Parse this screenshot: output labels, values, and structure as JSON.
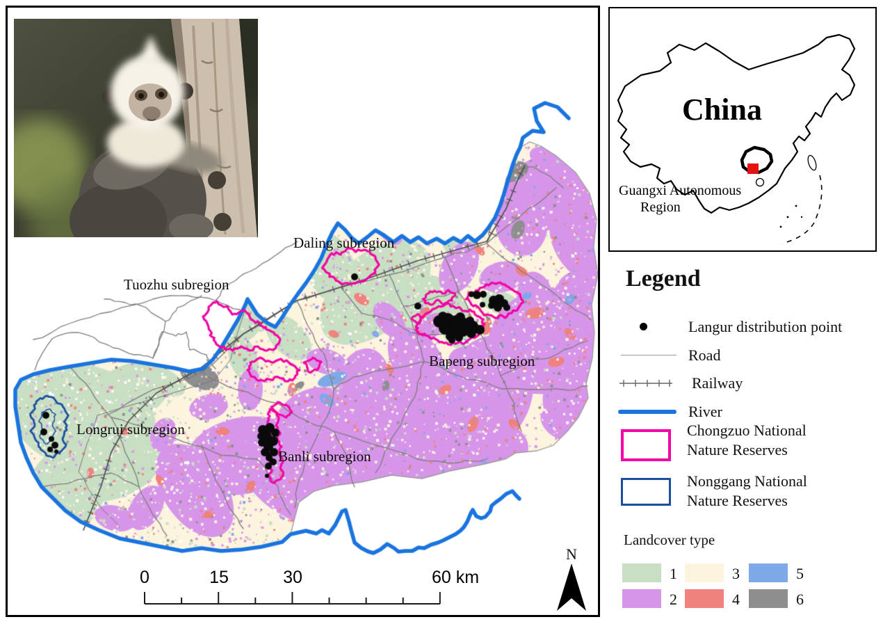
{
  "map": {
    "labels": {
      "daling": "Daling subregion",
      "tuozhu": "Tuozhu subregion",
      "bapeng": "Bapeng subregion",
      "longrui": "Longrui subregion",
      "banli": "Banli subregion"
    },
    "scale_bar": {
      "t0": "0",
      "t15": "15",
      "t30": "30",
      "t60": "60 km"
    },
    "north": "N"
  },
  "china_inset": {
    "title": "China",
    "subtitle_line1": "Guangxi Autonomous",
    "subtitle_line2": "Region"
  },
  "legend": {
    "title": "Legend",
    "items": [
      {
        "id": "langur-point",
        "label": "Langur distribution point"
      },
      {
        "id": "road",
        "label": "Road"
      },
      {
        "id": "railway",
        "label": "Railway"
      },
      {
        "id": "river",
        "label": "River"
      },
      {
        "id": "chongzuo-reserve",
        "label": "Chongzuo National",
        "label2": "Nature Reserves"
      },
      {
        "id": "nonggang-reserve",
        "label": "Nonggang National",
        "label2": "Nature  Reserves"
      }
    ],
    "landcover": {
      "title": "Landcover type",
      "classes": [
        {
          "id": "1",
          "color": "#c9dfc4"
        },
        {
          "id": "2",
          "color": "#d795ea"
        },
        {
          "id": "3",
          "color": "#fdf4de"
        },
        {
          "id": "4",
          "color": "#ef827d"
        },
        {
          "id": "5",
          "color": "#7ea9e8"
        },
        {
          "id": "6",
          "color": "#8e8e8e"
        }
      ]
    }
  },
  "colors": {
    "river": "#1a74df",
    "road": "#7d7d7d",
    "railway": "#4f4f4f",
    "chongzuo_reserve": "#f203a3",
    "nonggang_reserve": "#1b4f9e",
    "langur_point": "#000000",
    "study_area_marker": "#e51212"
  }
}
